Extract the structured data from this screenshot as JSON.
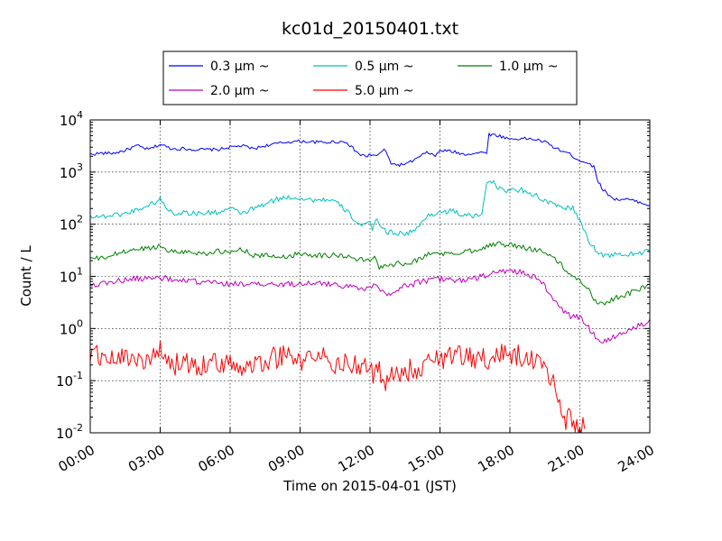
{
  "chart_data": {
    "type": "line",
    "title": "kc01d_20150401.txt",
    "xlabel": "Time on 2015-04-01 (JST)",
    "ylabel": "Count / L",
    "xlim": [
      0,
      24
    ],
    "ylim": [
      0.01,
      10000
    ],
    "yscale": "log",
    "grid": true,
    "legend_position": "top-center",
    "x_tick_labels": [
      "00:00",
      "03:00",
      "06:00",
      "09:00",
      "12:00",
      "15:00",
      "18:00",
      "21:00",
      "24:00"
    ],
    "y_tick_labels": [
      {
        "base": "10",
        "exp": "-2"
      },
      {
        "base": "10",
        "exp": "-1"
      },
      {
        "base": "10",
        "exp": "0"
      },
      {
        "base": "10",
        "exp": "1"
      },
      {
        "base": "10",
        "exp": "2"
      },
      {
        "base": "10",
        "exp": "3"
      },
      {
        "base": "10",
        "exp": "4"
      }
    ],
    "series": [
      {
        "name": "0.3 μm ~",
        "color": "#0000ff",
        "x": [
          0,
          0.5,
          1,
          1.5,
          2,
          2.5,
          3,
          3.5,
          4,
          4.5,
          5,
          5.5,
          6,
          6.5,
          7,
          7.5,
          8,
          8.5,
          9,
          9.5,
          10,
          10.5,
          11,
          11.2,
          11.6,
          11.9,
          12,
          12.3,
          12.6,
          12.9,
          13.2,
          13.6,
          14,
          14.3,
          14.5,
          14.8,
          15,
          15.5,
          16,
          16.5,
          17,
          17.1,
          17.5,
          18,
          18.5,
          19,
          19.5,
          20,
          20.5,
          21,
          21.3,
          21.6,
          21.8,
          22,
          22.5,
          23,
          23.5,
          24
        ],
        "y": [
          2200,
          2300,
          2300,
          2600,
          3200,
          2700,
          3400,
          2800,
          2800,
          2700,
          2700,
          2700,
          3000,
          3200,
          2800,
          3200,
          3500,
          3800,
          3900,
          3800,
          3700,
          3800,
          3800,
          3000,
          2100,
          2000,
          2200,
          2000,
          2800,
          1500,
          1350,
          1450,
          1800,
          2200,
          2400,
          2000,
          2600,
          2500,
          2200,
          2300,
          2400,
          5300,
          5000,
          4300,
          4400,
          4300,
          3800,
          2800,
          2300,
          1650,
          1550,
          1250,
          650,
          450,
          300,
          300,
          270,
          230
        ]
      },
      {
        "name": "0.5 μm ~",
        "color": "#00bfbf",
        "x": [
          0,
          0.5,
          1,
          1.5,
          2,
          2.5,
          3,
          3.3,
          3.6,
          4,
          4.5,
          5,
          5.5,
          6,
          6.5,
          7,
          7.5,
          8,
          8.5,
          9,
          9.5,
          10,
          10.5,
          11,
          11.5,
          12,
          12.1,
          12.3,
          12.5,
          12.7,
          13,
          13.5,
          14,
          14.5,
          15,
          15.5,
          16,
          16.5,
          16.8,
          17,
          17.3,
          17.5,
          18,
          18.5,
          19,
          19.5,
          20,
          20.4,
          20.7,
          21,
          21.3,
          21.6,
          22,
          22.5,
          23,
          23.5,
          24
        ],
        "y": [
          145,
          140,
          150,
          160,
          190,
          230,
          300,
          200,
          160,
          170,
          160,
          165,
          170,
          200,
          160,
          200,
          240,
          300,
          330,
          320,
          290,
          300,
          270,
          180,
          100,
          100,
          80,
          130,
          90,
          70,
          70,
          65,
          80,
          150,
          170,
          180,
          150,
          140,
          155,
          650,
          700,
          470,
          440,
          460,
          380,
          280,
          220,
          210,
          200,
          120,
          55,
          35,
          25,
          26,
          26,
          28,
          30
        ]
      },
      {
        "name": "1.0 μm ~",
        "color": "#008000",
        "x": [
          0,
          0.5,
          1,
          1.5,
          2,
          2.5,
          3,
          3.5,
          4,
          4.5,
          5,
          5.5,
          6,
          6.5,
          7,
          7.5,
          8,
          8.5,
          9,
          9.5,
          10,
          10.5,
          11,
          11.5,
          12,
          12.2,
          12.4,
          12.6,
          13,
          13.5,
          14,
          14.5,
          15,
          15.5,
          16,
          16.5,
          17,
          17.5,
          18,
          18.5,
          19,
          19.5,
          20,
          20.5,
          21,
          21.3,
          21.6,
          22,
          22.5,
          23,
          23.5,
          24
        ],
        "y": [
          22,
          22,
          26,
          30,
          33,
          35,
          38,
          30,
          30,
          28,
          28,
          30,
          28,
          34,
          25,
          25,
          24,
          24,
          28,
          26,
          25,
          26,
          24,
          21,
          20,
          27,
          14,
          17,
          17,
          18,
          20,
          27,
          28,
          26,
          30,
          32,
          38,
          42,
          40,
          36,
          33,
          30,
          20,
          12,
          8,
          6.5,
          3.5,
          3,
          3.8,
          4.5,
          5.5,
          7
        ]
      },
      {
        "name": "2.0 μm ~",
        "color": "#bf00bf",
        "x": [
          0,
          0.5,
          1,
          1.5,
          2,
          2.5,
          3,
          3.5,
          4,
          4.5,
          5,
          5.5,
          6,
          6.5,
          7,
          7.5,
          8,
          8.5,
          9,
          9.5,
          10,
          10.5,
          11,
          11.5,
          12,
          12.3,
          12.6,
          13,
          13.5,
          14,
          14.5,
          15,
          15.5,
          16,
          16.5,
          17,
          17.5,
          18,
          18.5,
          19,
          19.5,
          20,
          20.3,
          20.6,
          21,
          21.3,
          21.6,
          22,
          22.5,
          23,
          23.5,
          24
        ],
        "y": [
          7,
          7.2,
          8,
          8.5,
          9,
          9.2,
          9.5,
          8.5,
          8,
          8,
          7.5,
          7.5,
          7,
          7.5,
          6.8,
          7,
          7,
          7,
          7.5,
          7.5,
          7,
          7.2,
          6.5,
          6,
          6,
          7,
          4.8,
          5,
          6.5,
          7.5,
          8.5,
          9,
          8.5,
          8.5,
          9,
          10.5,
          12,
          13,
          12,
          10,
          6.5,
          3,
          2.2,
          1.7,
          1.6,
          1.2,
          0.75,
          0.55,
          0.7,
          0.9,
          1.1,
          1.5
        ]
      },
      {
        "name": "5.0 μm ~",
        "color": "#ff0000",
        "x": [
          0,
          0.5,
          1,
          1.5,
          2,
          2.5,
          3,
          3.5,
          4,
          4.5,
          5,
          5.5,
          6,
          6.5,
          7,
          7.5,
          8,
          8.5,
          9,
          9.5,
          10,
          10.5,
          11,
          11.5,
          12,
          12.2,
          12.4,
          12.6,
          13,
          13.5,
          14,
          14.5,
          15,
          15.5,
          16,
          16.5,
          17,
          17.5,
          18,
          18.5,
          19,
          19.3,
          19.6,
          19.8,
          20,
          20.2,
          20.4,
          20.6,
          20.8,
          21,
          21.2
        ],
        "y": [
          0.28,
          0.3,
          0.25,
          0.3,
          0.28,
          0.22,
          0.35,
          0.2,
          0.22,
          0.2,
          0.22,
          0.2,
          0.25,
          0.15,
          0.2,
          0.25,
          0.28,
          0.3,
          0.22,
          0.3,
          0.28,
          0.2,
          0.25,
          0.18,
          0.15,
          0.12,
          0.18,
          0.1,
          0.12,
          0.15,
          0.18,
          0.22,
          0.25,
          0.28,
          0.3,
          0.28,
          0.25,
          0.3,
          0.33,
          0.28,
          0.22,
          0.2,
          0.15,
          0.1,
          0.06,
          0.03,
          0.018,
          0.02,
          0.015,
          0.012,
          0.012
        ]
      }
    ]
  }
}
